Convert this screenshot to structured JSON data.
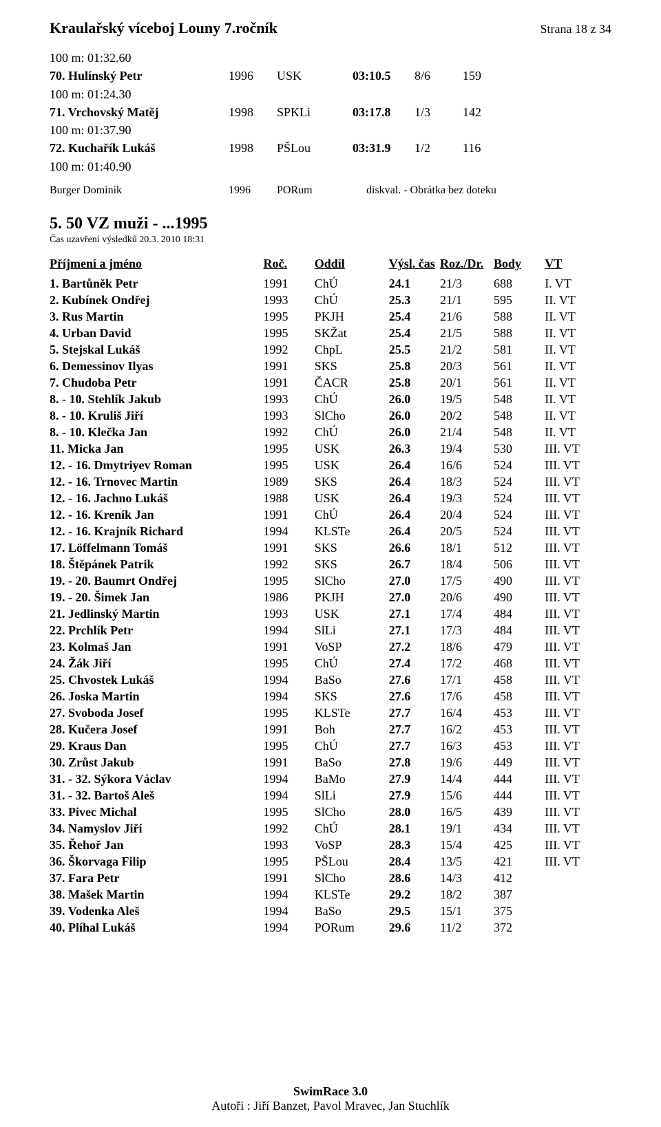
{
  "header": {
    "title": "Kraulařský víceboj Louny 7.ročník",
    "page_label": "Strana 18 z 34"
  },
  "pre_section": {
    "rows": [
      {
        "note": "100 m: 01:32.60",
        "rank": "70.",
        "name": "Hulínský Petr",
        "year": "1996",
        "club": "USK",
        "time": "03:10.5",
        "frac": "8/6",
        "pts": "159"
      },
      {
        "note": "100 m: 01:24.30",
        "rank": "71.",
        "name": "Vrchovský Matěj",
        "year": "1998",
        "club": "SPKLi",
        "time": "03:17.8",
        "frac": "1/3",
        "pts": "142"
      },
      {
        "note": "100 m: 01:37.90",
        "rank": "72.",
        "name": "Kuchařík Lukáš",
        "year": "1998",
        "club": "PŠLou",
        "time": "03:31.9",
        "frac": "1/2",
        "pts": "116"
      },
      {
        "note": "100 m: 01:40.90",
        "rank": "",
        "name": "",
        "year": "",
        "club": "",
        "time": "",
        "frac": "",
        "pts": ""
      }
    ],
    "dq": {
      "name": "Burger Dominik",
      "year": "1996",
      "club": "PORum",
      "text": "diskval.   - Obrátka bez doteku"
    }
  },
  "section": {
    "title": "5. 50 VZ muži - ...1995",
    "subtitle": "Čas uzavření výsledků 20.3. 2010 18:31"
  },
  "columns": {
    "name": "Příjmení a jméno",
    "year": "Roč.",
    "club": "Oddíl",
    "time": "Výsl. čas",
    "frac": "Roz./Dr.",
    "body": "Body",
    "vt": "VT"
  },
  "rows": [
    {
      "rank": "1.",
      "name": "Bartůněk Petr",
      "year": "1991",
      "club": "ChÚ",
      "time": "24.1",
      "frac": "21/3",
      "body": "688",
      "vt": "I. VT"
    },
    {
      "rank": "2.",
      "name": "Kubínek Ondřej",
      "year": "1993",
      "club": "ChÚ",
      "time": "25.3",
      "frac": "21/1",
      "body": "595",
      "vt": "II. VT"
    },
    {
      "rank": "3.",
      "name": "Rus Martin",
      "year": "1995",
      "club": "PKJH",
      "time": "25.4",
      "frac": "21/6",
      "body": "588",
      "vt": "II. VT"
    },
    {
      "rank": "4.",
      "name": "Urban David",
      "year": "1995",
      "club": "SKŽat",
      "time": "25.4",
      "frac": "21/5",
      "body": "588",
      "vt": "II. VT"
    },
    {
      "rank": "5.",
      "name": "Stejskal Lukáš",
      "year": "1992",
      "club": "ChpL",
      "time": "25.5",
      "frac": "21/2",
      "body": "581",
      "vt": "II. VT"
    },
    {
      "rank": "6.",
      "name": "Demessinov Ilyas",
      "year": "1991",
      "club": "SKS",
      "time": "25.8",
      "frac": "20/3",
      "body": "561",
      "vt": "II. VT"
    },
    {
      "rank": "7.",
      "name": "Chudoba Petr",
      "year": "1991",
      "club": "ČACR",
      "time": "25.8",
      "frac": "20/1",
      "body": "561",
      "vt": "II. VT"
    },
    {
      "rank": "8. - 10.",
      "name": "Stehlík Jakub",
      "year": "1993",
      "club": "ChÚ",
      "time": "26.0",
      "frac": "19/5",
      "body": "548",
      "vt": "II. VT"
    },
    {
      "rank": "8. - 10.",
      "name": "Kruliš Jiří",
      "year": "1993",
      "club": "SlCho",
      "time": "26.0",
      "frac": "20/2",
      "body": "548",
      "vt": "II. VT"
    },
    {
      "rank": "8. - 10.",
      "name": "Klečka Jan",
      "year": "1992",
      "club": "ChÚ",
      "time": "26.0",
      "frac": "21/4",
      "body": "548",
      "vt": "II. VT"
    },
    {
      "rank": "11.",
      "name": "Micka Jan",
      "year": "1995",
      "club": "USK",
      "time": "26.3",
      "frac": "19/4",
      "body": "530",
      "vt": "III. VT"
    },
    {
      "rank": "12. - 16.",
      "name": "Dmytriyev Roman",
      "year": "1995",
      "club": "USK",
      "time": "26.4",
      "frac": "16/6",
      "body": "524",
      "vt": "III. VT"
    },
    {
      "rank": "12. - 16.",
      "name": "Trnovec Martin",
      "year": "1989",
      "club": "SKS",
      "time": "26.4",
      "frac": "18/3",
      "body": "524",
      "vt": "III. VT"
    },
    {
      "rank": "12. - 16.",
      "name": "Jachno Lukáš",
      "year": "1988",
      "club": "USK",
      "time": "26.4",
      "frac": "19/3",
      "body": "524",
      "vt": "III. VT"
    },
    {
      "rank": "12. - 16.",
      "name": "Kreník Jan",
      "year": "1991",
      "club": "ChÚ",
      "time": "26.4",
      "frac": "20/4",
      "body": "524",
      "vt": "III. VT"
    },
    {
      "rank": "12. - 16.",
      "name": "Krajník Richard",
      "year": "1994",
      "club": "KLSTe",
      "time": "26.4",
      "frac": "20/5",
      "body": "524",
      "vt": "III. VT"
    },
    {
      "rank": "17.",
      "name": "Löffelmann Tomáš",
      "year": "1991",
      "club": "SKS",
      "time": "26.6",
      "frac": "18/1",
      "body": "512",
      "vt": "III. VT"
    },
    {
      "rank": "18.",
      "name": "Štěpánek Patrik",
      "year": "1992",
      "club": "SKS",
      "time": "26.7",
      "frac": "18/4",
      "body": "506",
      "vt": "III. VT"
    },
    {
      "rank": "19. - 20.",
      "name": "Baumrt Ondřej",
      "year": "1995",
      "club": "SlCho",
      "time": "27.0",
      "frac": "17/5",
      "body": "490",
      "vt": "III. VT"
    },
    {
      "rank": "19. - 20.",
      "name": "Šimek Jan",
      "year": "1986",
      "club": "PKJH",
      "time": "27.0",
      "frac": "20/6",
      "body": "490",
      "vt": "III. VT"
    },
    {
      "rank": "21.",
      "name": "Jedlinský Martin",
      "year": "1993",
      "club": "USK",
      "time": "27.1",
      "frac": "17/4",
      "body": "484",
      "vt": "III. VT"
    },
    {
      "rank": "22.",
      "name": "Prchlík Petr",
      "year": "1994",
      "club": "SlLi",
      "time": "27.1",
      "frac": "17/3",
      "body": "484",
      "vt": "III. VT"
    },
    {
      "rank": "23.",
      "name": "Kolmaš Jan",
      "year": "1991",
      "club": "VoSP",
      "time": "27.2",
      "frac": "18/6",
      "body": "479",
      "vt": "III. VT"
    },
    {
      "rank": "24.",
      "name": "Žák Jiří",
      "year": "1995",
      "club": "ChÚ",
      "time": "27.4",
      "frac": "17/2",
      "body": "468",
      "vt": "III. VT"
    },
    {
      "rank": "25.",
      "name": "Chvostek Lukáš",
      "year": "1994",
      "club": "BaSo",
      "time": "27.6",
      "frac": "17/1",
      "body": "458",
      "vt": "III. VT"
    },
    {
      "rank": "26.",
      "name": "Joska Martin",
      "year": "1994",
      "club": "SKS",
      "time": "27.6",
      "frac": "17/6",
      "body": "458",
      "vt": "III. VT"
    },
    {
      "rank": "27.",
      "name": "Svoboda Josef",
      "year": "1995",
      "club": "KLSTe",
      "time": "27.7",
      "frac": "16/4",
      "body": "453",
      "vt": "III. VT"
    },
    {
      "rank": "28.",
      "name": "Kučera Josef",
      "year": "1991",
      "club": "Boh",
      "time": "27.7",
      "frac": "16/2",
      "body": "453",
      "vt": "III. VT"
    },
    {
      "rank": "29.",
      "name": "Kraus Dan",
      "year": "1995",
      "club": "ChÚ",
      "time": "27.7",
      "frac": "16/3",
      "body": "453",
      "vt": "III. VT"
    },
    {
      "rank": "30.",
      "name": "Zrůst Jakub",
      "year": "1991",
      "club": "BaSo",
      "time": "27.8",
      "frac": "19/6",
      "body": "449",
      "vt": "III. VT"
    },
    {
      "rank": "31. - 32.",
      "name": "Sýkora Václav",
      "year": "1994",
      "club": "BaMo",
      "time": "27.9",
      "frac": "14/4",
      "body": "444",
      "vt": "III. VT"
    },
    {
      "rank": "31. - 32.",
      "name": "Bartoš Aleš",
      "year": "1994",
      "club": "SlLi",
      "time": "27.9",
      "frac": "15/6",
      "body": "444",
      "vt": "III. VT"
    },
    {
      "rank": "33.",
      "name": "Pivec Michal",
      "year": "1995",
      "club": "SlCho",
      "time": "28.0",
      "frac": "16/5",
      "body": "439",
      "vt": "III. VT"
    },
    {
      "rank": "34.",
      "name": "Namyslov Jiří",
      "year": "1992",
      "club": "ChÚ",
      "time": "28.1",
      "frac": "19/1",
      "body": "434",
      "vt": "III. VT"
    },
    {
      "rank": "35.",
      "name": "Řehoř Jan",
      "year": "1993",
      "club": "VoSP",
      "time": "28.3",
      "frac": "15/4",
      "body": "425",
      "vt": "III. VT"
    },
    {
      "rank": "36.",
      "name": "Škorvaga Filip",
      "year": "1995",
      "club": "PŠLou",
      "time": "28.4",
      "frac": "13/5",
      "body": "421",
      "vt": "III. VT"
    },
    {
      "rank": "37.",
      "name": "Fara Petr",
      "year": "1991",
      "club": "SlCho",
      "time": "28.6",
      "frac": "14/3",
      "body": "412",
      "vt": ""
    },
    {
      "rank": "38.",
      "name": "Mašek Martin",
      "year": "1994",
      "club": "KLSTe",
      "time": "29.2",
      "frac": "18/2",
      "body": "387",
      "vt": ""
    },
    {
      "rank": "39.",
      "name": "Vodenka Aleš",
      "year": "1994",
      "club": "BaSo",
      "time": "29.5",
      "frac": "15/1",
      "body": "375",
      "vt": ""
    },
    {
      "rank": "40.",
      "name": "Plíhal Lukáš",
      "year": "1994",
      "club": "PORum",
      "time": "29.6",
      "frac": "11/2",
      "body": "372",
      "vt": ""
    }
  ],
  "footer": {
    "title": "SwimRace 3.0",
    "authors": "Autoři : Jiří Banzet, Pavol Mravec, Jan Stuchlík"
  }
}
